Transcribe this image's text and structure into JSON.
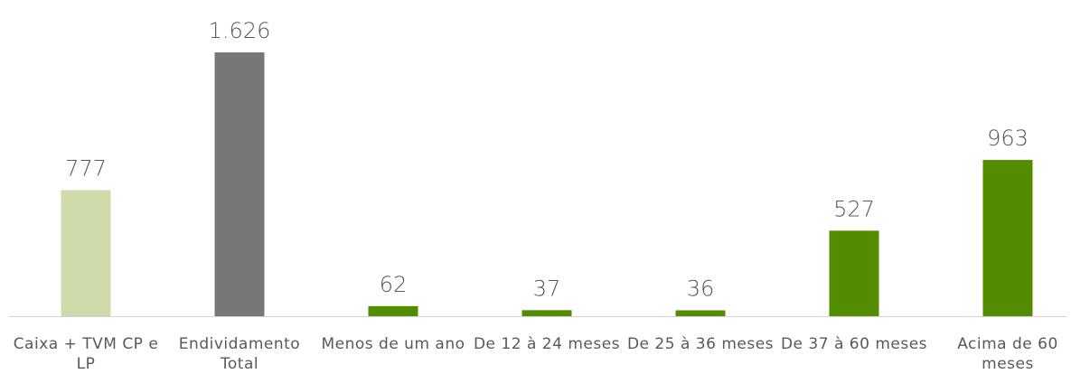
{
  "chart_data": {
    "type": "bar",
    "categories": [
      "Caixa + TVM CP e LP",
      "Endividamento Total",
      "Menos de um ano",
      "De 12 à 24 meses",
      "De 25 à 36 meses",
      "De 37 à 60 meses",
      "Acima de 60 meses"
    ],
    "values": [
      777,
      1626,
      62,
      37,
      36,
      527,
      963
    ],
    "value_labels": [
      "777",
      "1.626",
      "62",
      "37",
      "36",
      "527",
      "963"
    ],
    "colors": [
      "#cfdcaa",
      "#777777",
      "#548c00",
      "#548c00",
      "#548c00",
      "#548c00",
      "#548c00"
    ]
  }
}
